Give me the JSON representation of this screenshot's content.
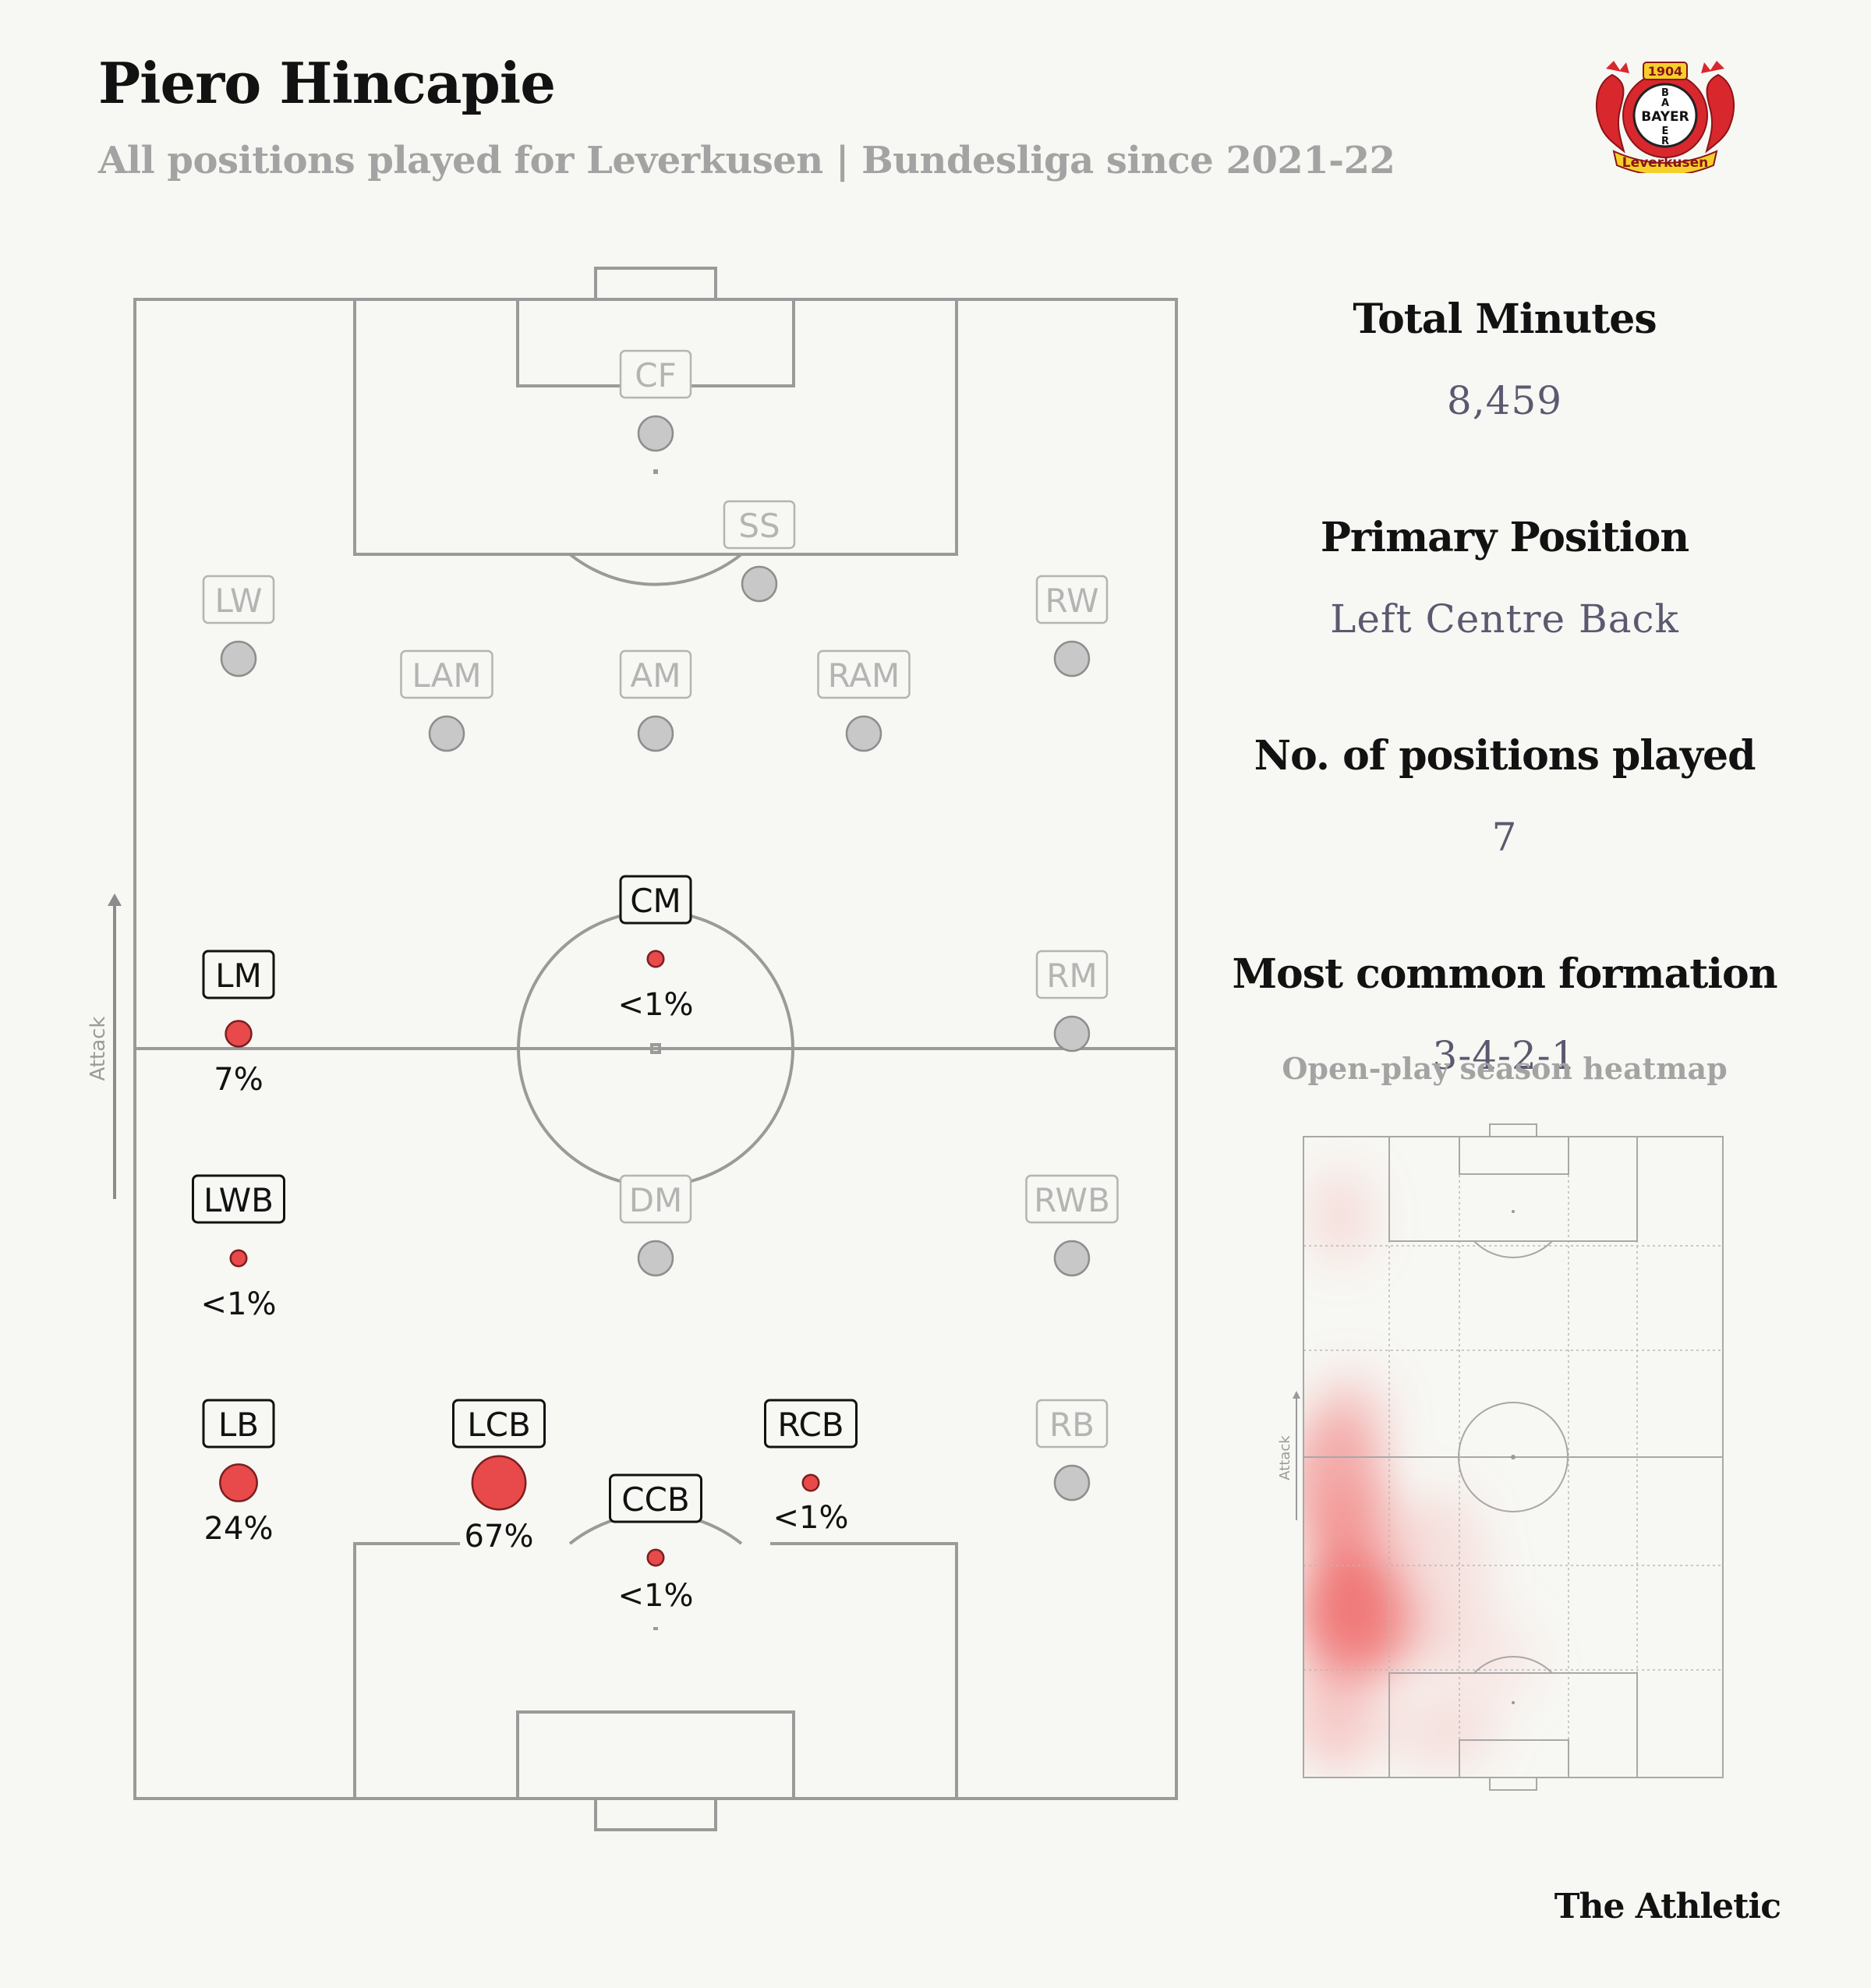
{
  "header": {
    "title": "Piero Hincapie",
    "subtitle": "All positions played for Leverkusen | Bundesliga since 2021-22"
  },
  "logo": {
    "year": "1904",
    "name": "BAYER",
    "club": "Leverkusen"
  },
  "pitch": {
    "attack_label": "Attack",
    "positions": [
      {
        "code": "CF",
        "active": false,
        "share": null
      },
      {
        "code": "SS",
        "active": false,
        "share": null
      },
      {
        "code": "LW",
        "active": false,
        "share": null
      },
      {
        "code": "RW",
        "active": false,
        "share": null
      },
      {
        "code": "LAM",
        "active": false,
        "share": null
      },
      {
        "code": "AM",
        "active": false,
        "share": null
      },
      {
        "code": "RAM",
        "active": false,
        "share": null
      },
      {
        "code": "CM",
        "active": true,
        "share": "<1%"
      },
      {
        "code": "LM",
        "active": true,
        "share": "7%"
      },
      {
        "code": "RM",
        "active": false,
        "share": null
      },
      {
        "code": "LWB",
        "active": true,
        "share": "<1%"
      },
      {
        "code": "DM",
        "active": false,
        "share": null
      },
      {
        "code": "RWB",
        "active": false,
        "share": null
      },
      {
        "code": "LB",
        "active": true,
        "share": "24%"
      },
      {
        "code": "LCB",
        "active": true,
        "share": "67%"
      },
      {
        "code": "CCB",
        "active": true,
        "share": "<1%"
      },
      {
        "code": "RCB",
        "active": true,
        "share": "<1%"
      },
      {
        "code": "RB",
        "active": false,
        "share": null
      }
    ]
  },
  "stats": {
    "total_minutes_label": "Total Minutes",
    "total_minutes": "8,459",
    "primary_position_label": "Primary Position",
    "primary_position": "Left Centre Back",
    "positions_played_label": "No. of positions played",
    "positions_played": "7",
    "formation_label": "Most common formation",
    "formation": "3-4-2-1"
  },
  "heatmap": {
    "title": "Open-play season heatmap",
    "attack_label": "Attack"
  },
  "credit": "The Athletic",
  "colors": {
    "background": "#f7f7f3",
    "active_dot": "#e8494a",
    "inactive_dot": "#c8c8c8",
    "line": "#9a9a9a",
    "accent_text": "#5d5870"
  }
}
